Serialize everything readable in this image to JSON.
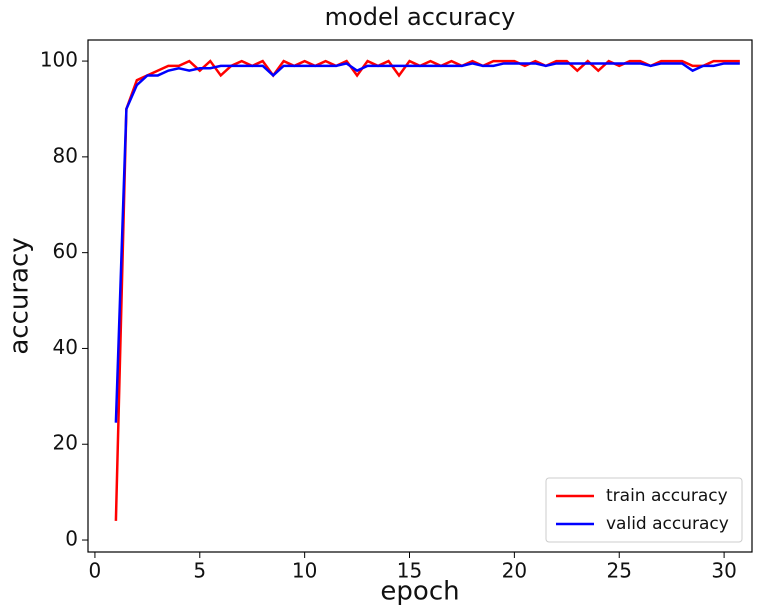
{
  "chart_data": {
    "type": "line",
    "title": "model accuracy",
    "x_label": "epoch",
    "y_label": "accuracy",
    "x": [
      1,
      1.5,
      2,
      2.5,
      3,
      3.5,
      4,
      4.5,
      5,
      5.5,
      6,
      6.5,
      7,
      7.5,
      8,
      8.5,
      9,
      9.5,
      10,
      10.5,
      11,
      11.5,
      12,
      12.5,
      13,
      13.5,
      14,
      14.5,
      15,
      15.5,
      16,
      16.5,
      17,
      17.5,
      18,
      18.5,
      19,
      19.5,
      20,
      20.5,
      21,
      21.5,
      22,
      22.5,
      23,
      23.5,
      24,
      24.5,
      25,
      25.5,
      26,
      26.5,
      27,
      27.5,
      28,
      28.5,
      29,
      29.5,
      30,
      30.5,
      30.75
    ],
    "series": [
      {
        "name": "train accuracy",
        "color": "#ff0000",
        "values": [
          4,
          90,
          96,
          97,
          98,
          99,
          99,
          100,
          98,
          100,
          97,
          99,
          100,
          99,
          100,
          97,
          100,
          99,
          100,
          99,
          100,
          99,
          100,
          97,
          100,
          99,
          100,
          97,
          100,
          99,
          100,
          99,
          100,
          99,
          100,
          99,
          100,
          100,
          100,
          99,
          100,
          99,
          100,
          100,
          98,
          100,
          98,
          100,
          99,
          100,
          100,
          99,
          100,
          100,
          100,
          99,
          99,
          100,
          100,
          100,
          100
        ]
      },
      {
        "name": "valid accuracy",
        "color": "#0000ff",
        "values": [
          24.5,
          90,
          95,
          97,
          97,
          98,
          98.5,
          98,
          98.5,
          98.5,
          99,
          99,
          99,
          99,
          99,
          97,
          99,
          99,
          99,
          99,
          99,
          99,
          99.5,
          98,
          99,
          99,
          99,
          99,
          99,
          99,
          99,
          99,
          99,
          99,
          99.5,
          99,
          99,
          99.5,
          99.5,
          99.5,
          99.5,
          99,
          99.5,
          99.5,
          99.5,
          99.5,
          99.5,
          99.5,
          99.5,
          99.5,
          99.5,
          99,
          99.5,
          99.5,
          99.5,
          98,
          99,
          99,
          99.5,
          99.5,
          99.5
        ]
      }
    ],
    "xlim": [
      -0.33,
      31.33
    ],
    "ylim": [
      -2.5,
      104.4
    ],
    "xticks": [
      0,
      5,
      10,
      15,
      20,
      25,
      30
    ],
    "yticks": [
      0,
      20,
      40,
      60,
      80,
      100
    ],
    "legend": "lower right"
  }
}
